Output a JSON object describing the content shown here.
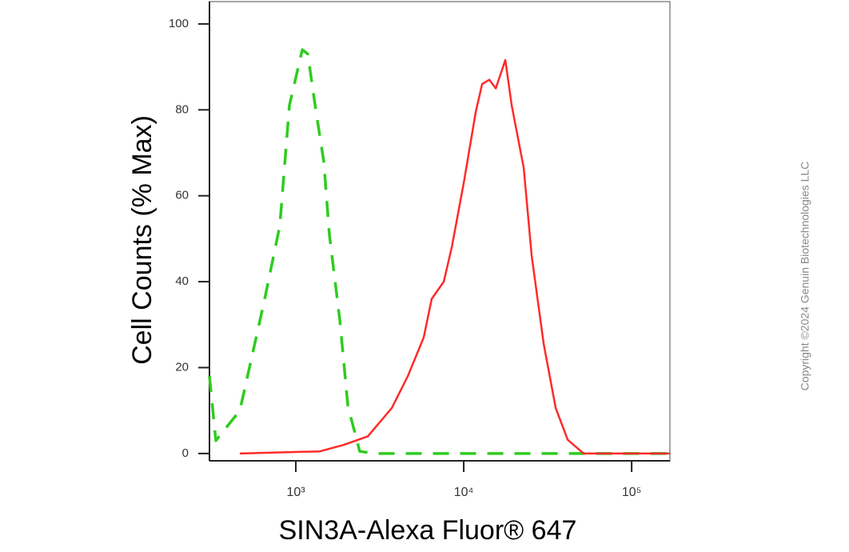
{
  "chart_data": {
    "type": "line",
    "x_label": "SIN3A-Alexa Fluor® 647",
    "y_label": "Cell Counts (% Max)",
    "annotation": "Copyright ©2024 Genuin Biotechnologies LLC",
    "xscale": "log",
    "xlim": [
      306,
      169000
    ],
    "ylim": [
      -1.7,
      105.2
    ],
    "xticks": [
      {
        "value": 1000,
        "label": "10³"
      },
      {
        "value": 10000,
        "label": "10⁴"
      },
      {
        "value": 100000,
        "label": "10⁵"
      }
    ],
    "yticks": [
      0,
      20,
      40,
      60,
      80,
      100
    ],
    "grid": false,
    "series": [
      {
        "color": "#2ecc1f",
        "line_style": "dashed",
        "x": [
          306,
          334,
          464,
          645,
          803,
          916,
          1092,
          1179,
          1315,
          1468,
          1585,
          1828,
          2042,
          2404,
          2995,
          169000
        ],
        "values": [
          18,
          3,
          10,
          35,
          53,
          81,
          94,
          93,
          80,
          68,
          51,
          31,
          11,
          0.5,
          0,
          0
        ]
      },
      {
        "color": "#ff2a2a",
        "line_style": "solid",
        "x": [
          464,
          1389,
          1931,
          2683,
          3728,
          4642,
          5776,
          6448,
          7604,
          8483,
          10000,
          11788,
          12877,
          14205,
          15522,
          17683,
          19307,
          22759,
          25400,
          29935,
          35280,
          41580,
          51790,
          169000
        ],
        "values": [
          0,
          0.5,
          2,
          4,
          10.6,
          18,
          27,
          36,
          40,
          48,
          63,
          79.5,
          86,
          87,
          85,
          91.6,
          81,
          66.5,
          46,
          25.5,
          10.6,
          3.2,
          0,
          0
        ]
      }
    ]
  }
}
